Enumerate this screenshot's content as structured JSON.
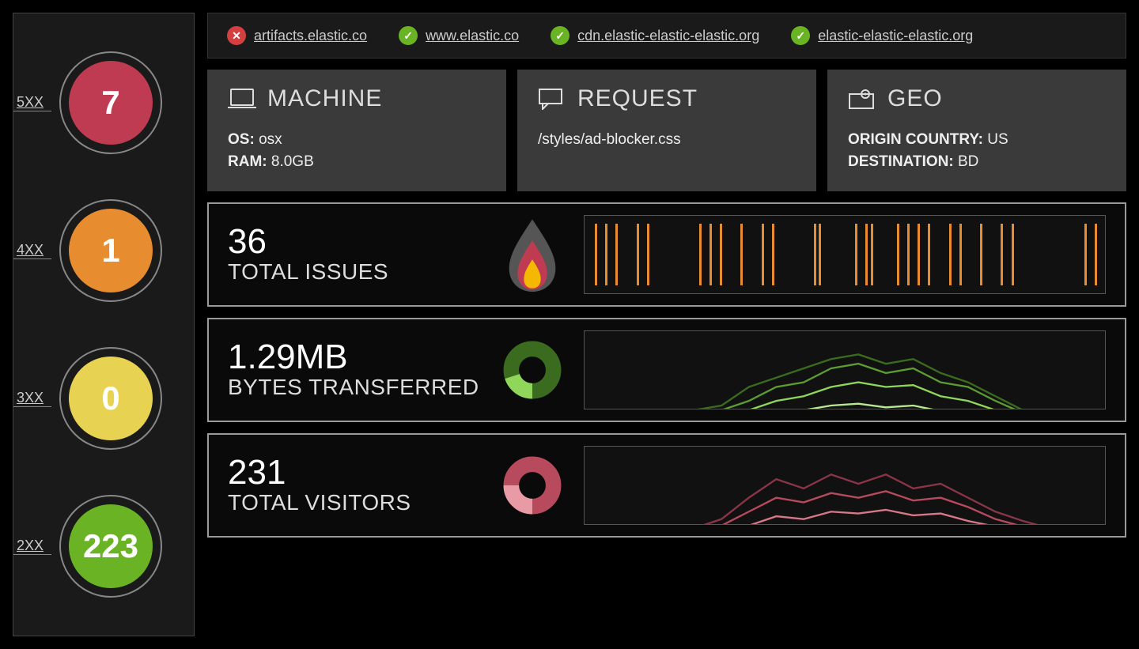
{
  "colors": {
    "bg": "#000000",
    "panel": "#1a1a1a",
    "card": "#3a3a3a",
    "border_light": "#999999",
    "red": "#be3b52",
    "orange": "#e88c30",
    "yellow": "#e8d252",
    "green": "#6ab325",
    "url_ok": "#6ab325",
    "url_bad": "#d43f3f",
    "flame_outer": "#555555",
    "flame_mid": "#d43f3f",
    "flame_inner": "#f5b800",
    "donut_green_dark": "#3a6b1f",
    "donut_green_light": "#8fd65a",
    "donut_pink_dark": "#b84a5e",
    "donut_pink_light": "#e89aa5",
    "barcode_color": "#e88c30"
  },
  "status_codes": [
    {
      "label": "5XX",
      "value": "7",
      "color": "#be3b52"
    },
    {
      "label": "4XX",
      "value": "1",
      "color": "#e88c30"
    },
    {
      "label": "3XX",
      "value": "0",
      "color": "#e8d252"
    },
    {
      "label": "2XX",
      "value": "223",
      "color": "#6ab325"
    }
  ],
  "urls": [
    {
      "ok": false,
      "text": "artifacts.elastic.co"
    },
    {
      "ok": true,
      "text": "www.elastic.co"
    },
    {
      "ok": true,
      "text": "cdn.elastic-elastic-elastic.org"
    },
    {
      "ok": true,
      "text": "elastic-elastic-elastic.org"
    }
  ],
  "cards": {
    "machine": {
      "title": "MACHINE",
      "os_label": "OS:",
      "os": "osx",
      "ram_label": "RAM:",
      "ram": "8.0GB"
    },
    "request": {
      "title": "REQUEST",
      "path": "/styles/ad-blocker.css"
    },
    "geo": {
      "title": "GEO",
      "origin_label": "ORIGIN COUNTRY:",
      "origin": "US",
      "dest_label": "DESTINATION:",
      "dest": "BD"
    }
  },
  "metrics": {
    "issues": {
      "value": "36",
      "label": "TOTAL ISSUES",
      "barcode_positions": [
        2,
        4,
        6,
        10,
        12,
        22,
        24,
        26,
        30,
        34,
        36,
        44,
        45,
        52,
        54,
        55,
        60,
        62,
        64,
        66,
        70,
        72,
        76,
        80,
        82,
        96,
        98
      ]
    },
    "bytes": {
      "value": "1.29MB",
      "label": "BYTES TRANSFERRED",
      "donut_pct": 0.8,
      "spark_colors": [
        "#3a6b1f",
        "#5c9c35",
        "#8fd65a",
        "#b8e890"
      ],
      "spark_series": [
        [
          0.9,
          0.9,
          0.88,
          0.9,
          0.85,
          0.8,
          0.6,
          0.5,
          0.4,
          0.3,
          0.25,
          0.35,
          0.3,
          0.45,
          0.55,
          0.7,
          0.85,
          0.9,
          0.9,
          0.9
        ],
        [
          0.92,
          0.9,
          0.9,
          0.9,
          0.88,
          0.85,
          0.75,
          0.6,
          0.55,
          0.4,
          0.35,
          0.45,
          0.4,
          0.55,
          0.6,
          0.75,
          0.88,
          0.9,
          0.92,
          0.92
        ],
        [
          0.95,
          0.94,
          0.94,
          0.93,
          0.92,
          0.9,
          0.85,
          0.75,
          0.7,
          0.6,
          0.55,
          0.6,
          0.58,
          0.7,
          0.75,
          0.85,
          0.92,
          0.94,
          0.95,
          0.95
        ],
        [
          0.97,
          0.97,
          0.96,
          0.96,
          0.95,
          0.94,
          0.92,
          0.88,
          0.85,
          0.8,
          0.78,
          0.82,
          0.8,
          0.86,
          0.88,
          0.92,
          0.95,
          0.96,
          0.97,
          0.97
        ]
      ]
    },
    "visitors": {
      "value": "231",
      "label": "TOTAL VISITORS",
      "donut_pct": 0.75,
      "spark_colors": [
        "#8a3545",
        "#b84a5e",
        "#d67888",
        "#e89aa5"
      ],
      "spark_series": [
        [
          0.92,
          0.92,
          0.9,
          0.92,
          0.88,
          0.78,
          0.55,
          0.35,
          0.45,
          0.3,
          0.4,
          0.3,
          0.45,
          0.4,
          0.55,
          0.7,
          0.8,
          0.88,
          0.92,
          0.92
        ],
        [
          0.94,
          0.93,
          0.92,
          0.93,
          0.9,
          0.85,
          0.7,
          0.55,
          0.6,
          0.5,
          0.55,
          0.48,
          0.58,
          0.55,
          0.65,
          0.78,
          0.86,
          0.92,
          0.94,
          0.94
        ],
        [
          0.96,
          0.96,
          0.95,
          0.95,
          0.94,
          0.92,
          0.85,
          0.75,
          0.78,
          0.7,
          0.72,
          0.68,
          0.74,
          0.72,
          0.8,
          0.86,
          0.92,
          0.95,
          0.96,
          0.96
        ],
        [
          0.97,
          0.97,
          0.97,
          0.97,
          0.96,
          0.95,
          0.93,
          0.9,
          0.92,
          0.9,
          0.91,
          0.95,
          0.96,
          0.96,
          0.97,
          0.97,
          0.97,
          0.97,
          0.97,
          0.97
        ]
      ]
    }
  }
}
